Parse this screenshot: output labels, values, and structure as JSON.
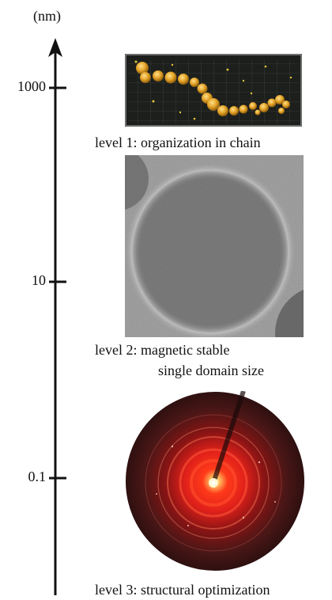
{
  "axis": {
    "unit": "(nm)",
    "scale": "log",
    "ticks": [
      {
        "label": "1000",
        "value": 1000
      },
      {
        "label": "10",
        "value": 10
      },
      {
        "label": "0.1",
        "value": 0.1
      }
    ]
  },
  "levels": [
    {
      "caption": "level 1: organization in chain"
    },
    {
      "caption_line1": "level 2: magnetic stable",
      "caption_line2": "single domain size"
    },
    {
      "caption": "level 3: structural optimization"
    }
  ],
  "colors": {
    "axis": "#111111",
    "chain_bg": "#1c1f1c",
    "chain_particle": "#e3a227",
    "tem_bg": "#9a9a9a",
    "diffraction_bg": "#3a1414",
    "diffraction_glow": "#ff2a1a"
  }
}
